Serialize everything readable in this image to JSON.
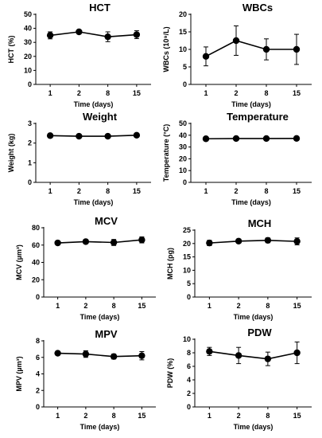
{
  "chart_data": [
    {
      "id": "hct",
      "type": "line",
      "title": "HCT",
      "ylabel": "HCT (%)",
      "xlabel": "Time (days)",
      "categories": [
        "1",
        "2",
        "8",
        "15"
      ],
      "ylim": [
        0,
        50
      ],
      "yticks": [
        "0",
        "10",
        "20",
        "30",
        "40",
        "50"
      ],
      "series": [
        {
          "values": [
            35,
            37.5,
            34,
            35.5
          ],
          "errors": [
            2.5,
            1.2,
            3.5,
            2.8
          ]
        }
      ]
    },
    {
      "id": "wbcs",
      "type": "line",
      "title": "WBCs",
      "ylabel": "WBCs (10⁹/L)",
      "xlabel": "Time (days)",
      "categories": [
        "1",
        "2",
        "8",
        "15"
      ],
      "ylim": [
        0,
        20
      ],
      "yticks": [
        "0",
        "5",
        "10",
        "15",
        "20"
      ],
      "series": [
        {
          "values": [
            8,
            12.5,
            10,
            10
          ],
          "errors": [
            2.7,
            4.2,
            3.0,
            4.3
          ]
        }
      ]
    },
    {
      "id": "weight",
      "type": "line",
      "title": "Weight",
      "ylabel": "Weight (kg)",
      "xlabel": "Time (days)",
      "categories": [
        "1",
        "2",
        "8",
        "15"
      ],
      "ylim": [
        0,
        3
      ],
      "yticks": [
        "0",
        "1",
        "2",
        "3"
      ],
      "series": [
        {
          "values": [
            2.38,
            2.35,
            2.35,
            2.4
          ],
          "errors": [
            0.05,
            0.05,
            0.05,
            0.05
          ]
        }
      ]
    },
    {
      "id": "temperature",
      "type": "line",
      "title": "Temperature",
      "ylabel": "Temperature (°C)",
      "xlabel": "Time (days)",
      "categories": [
        "1",
        "2",
        "8",
        "15"
      ],
      "ylim": [
        0,
        50
      ],
      "yticks": [
        "0",
        "10",
        "20",
        "30",
        "40",
        "50"
      ],
      "series": [
        {
          "values": [
            37,
            37.2,
            37.2,
            37.3
          ],
          "errors": [
            0.3,
            0.3,
            0.3,
            0.3
          ]
        }
      ]
    },
    {
      "id": "mcv",
      "type": "line",
      "title": "MCV",
      "ylabel": "MCV (µm³)",
      "xlabel": "Time (days)",
      "categories": [
        "1",
        "2",
        "8",
        "15"
      ],
      "ylim": [
        0,
        80
      ],
      "yticks": [
        "0",
        "20",
        "40",
        "60",
        "80"
      ],
      "series": [
        {
          "values": [
            62.5,
            64,
            63,
            66
          ],
          "errors": [
            2.0,
            2.0,
            3.5,
            3.5
          ]
        }
      ]
    },
    {
      "id": "mch",
      "type": "line",
      "title": "MCH",
      "ylabel": "MCH (pg)",
      "xlabel": "Time (days)",
      "categories": [
        "1",
        "2",
        "8",
        "15"
      ],
      "ylim": [
        0,
        25
      ],
      "yticks": [
        "0",
        "5",
        "10",
        "15",
        "20",
        "25"
      ],
      "series": [
        {
          "values": [
            20.2,
            20.9,
            21.2,
            20.8
          ],
          "errors": [
            1.0,
            0.6,
            0.9,
            1.3
          ]
        }
      ]
    },
    {
      "id": "mpv",
      "type": "line",
      "title": "MPV",
      "ylabel": "MPV (µm³)",
      "xlabel": "Time (days)",
      "categories": [
        "1",
        "2",
        "8",
        "15"
      ],
      "ylim": [
        0,
        8
      ],
      "yticks": [
        "0",
        "2",
        "4",
        "6",
        "8"
      ],
      "series": [
        {
          "values": [
            6.5,
            6.4,
            6.1,
            6.2
          ],
          "errors": [
            0.2,
            0.4,
            0.3,
            0.5
          ]
        }
      ]
    },
    {
      "id": "pdw",
      "type": "line",
      "title": "PDW",
      "ylabel": "PDW (%)",
      "xlabel": "Time (days)",
      "categories": [
        "1",
        "2",
        "8",
        "15"
      ],
      "ylim": [
        0,
        10
      ],
      "yticks": [
        "0",
        "2",
        "4",
        "6",
        "8",
        "10"
      ],
      "series": [
        {
          "values": [
            8.2,
            7.6,
            7.1,
            8.0
          ],
          "errors": [
            0.6,
            1.2,
            1.0,
            1.6
          ]
        }
      ]
    }
  ],
  "style": {
    "line_color": "#000000",
    "marker_color": "#000000",
    "background": "#ffffff",
    "gridlines": false,
    "legend": "none",
    "marker": "filled-circle",
    "error_bars": true
  }
}
